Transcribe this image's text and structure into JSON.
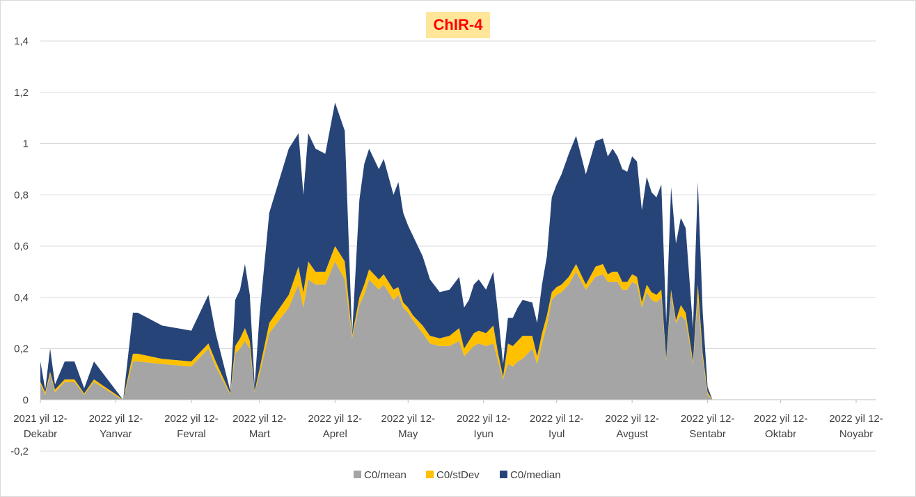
{
  "chart_data": {
    "type": "area",
    "title": "ChIR-4",
    "xlabel": "",
    "ylabel": "",
    "ylim": [
      -0.2,
      1.4
    ],
    "y_ticks": [
      "1,4",
      "1,2",
      "1",
      "0,8",
      "0,6",
      "0,4",
      "0,2",
      "0",
      "-0,2"
    ],
    "y_tick_values": [
      1.4,
      1.2,
      1.0,
      0.8,
      0.6,
      0.4,
      0.2,
      0,
      -0.2
    ],
    "grid": true,
    "legend_position": "bottom",
    "stacked": true,
    "x_axis_labels": [
      {
        "line1": "2021 yil 12-",
        "line2": "Dekabr"
      },
      {
        "line1": "2022 yil 12-",
        "line2": "Yanvar"
      },
      {
        "line1": "2022 yil 12-",
        "line2": "Fevral"
      },
      {
        "line1": "2022 yil 12-",
        "line2": "Mart"
      },
      {
        "line1": "2022 yil 12-",
        "line2": "Aprel"
      },
      {
        "line1": "2022 yil 12-",
        "line2": "May"
      },
      {
        "line1": "2022 yil 12-",
        "line2": "Iyun"
      },
      {
        "line1": "2022 yil 12-",
        "line2": "Iyul"
      },
      {
        "line1": "2022 yil 12-",
        "line2": "Avgust"
      },
      {
        "line1": "2022 yil 12-",
        "line2": "Sentabr"
      },
      {
        "line1": "2022 yil 12-",
        "line2": "Oktabr"
      },
      {
        "line1": "2022 yil 12-",
        "line2": "Noyabr"
      }
    ],
    "x": [
      "2021-12-12",
      "2021-12-14",
      "2021-12-16",
      "2021-12-18",
      "2021-12-22",
      "2021-12-26",
      "2021-12-30",
      "2022-01-03",
      "2022-01-13",
      "2022-01-15",
      "2022-01-19",
      "2022-01-21",
      "2022-01-31",
      "2022-02-12",
      "2022-02-19",
      "2022-02-22",
      "2022-02-28",
      "2022-03-02",
      "2022-03-04",
      "2022-03-06",
      "2022-03-08",
      "2022-03-10",
      "2022-03-12",
      "2022-03-16",
      "2022-03-24",
      "2022-03-28",
      "2022-03-30",
      "2022-04-01",
      "2022-04-04",
      "2022-04-08",
      "2022-04-12",
      "2022-04-16",
      "2022-04-19",
      "2022-04-22",
      "2022-04-24",
      "2022-04-26",
      "2022-04-30",
      "2022-05-02",
      "2022-05-06",
      "2022-05-08",
      "2022-05-10",
      "2022-05-12",
      "2022-05-14",
      "2022-05-18",
      "2022-05-21",
      "2022-05-25",
      "2022-05-29",
      "2022-06-02",
      "2022-06-04",
      "2022-06-06",
      "2022-06-08",
      "2022-06-10",
      "2022-06-13",
      "2022-06-16",
      "2022-06-18",
      "2022-06-20",
      "2022-06-22",
      "2022-06-24",
      "2022-06-26",
      "2022-06-28",
      "2022-07-02",
      "2022-07-04",
      "2022-07-06",
      "2022-07-08",
      "2022-07-10",
      "2022-07-12",
      "2022-07-14",
      "2022-07-17",
      "2022-07-20",
      "2022-07-24",
      "2022-07-28",
      "2022-07-31",
      "2022-08-02",
      "2022-08-04",
      "2022-08-06",
      "2022-08-08",
      "2022-08-10",
      "2022-08-12",
      "2022-08-14",
      "2022-08-16",
      "2022-08-18",
      "2022-08-20",
      "2022-08-22",
      "2022-08-24",
      "2022-08-26",
      "2022-08-28",
      "2022-08-30",
      "2022-09-01",
      "2022-09-03",
      "2022-09-06",
      "2022-09-08",
      "2022-09-10",
      "2022-09-12",
      "2022-09-14",
      "2022-09-16",
      "2022-09-18",
      "2022-09-22",
      "2022-09-24",
      "2022-09-26",
      "2022-09-28",
      "2022-09-30",
      "2022-10-02",
      "2022-10-04",
      "2022-10-08",
      "2022-10-10",
      "2022-10-14",
      "2022-10-16",
      "2022-11-10",
      "2022-11-18",
      "2022-11-20"
    ],
    "series": [
      {
        "name": "C0/mean",
        "color": "#a5a5a5",
        "values": [
          0.06,
          0.02,
          0.1,
          0.03,
          0.07,
          0.07,
          0.02,
          0.07,
          0.01,
          0.0,
          0.15,
          0.15,
          0.14,
          0.13,
          0.2,
          0.13,
          0.02,
          0.18,
          0.2,
          0.23,
          0.2,
          0.03,
          0.1,
          0.26,
          0.36,
          0.45,
          0.36,
          0.47,
          0.45,
          0.45,
          0.54,
          0.47,
          0.24,
          0.37,
          0.41,
          0.47,
          0.43,
          0.45,
          0.39,
          0.41,
          0.36,
          0.34,
          0.31,
          0.26,
          0.22,
          0.21,
          0.21,
          0.23,
          0.17,
          0.19,
          0.21,
          0.22,
          0.21,
          0.22,
          0.15,
          0.08,
          0.14,
          0.13,
          0.15,
          0.16,
          0.2,
          0.14,
          0.22,
          0.29,
          0.39,
          0.41,
          0.42,
          0.45,
          0.5,
          0.43,
          0.48,
          0.49,
          0.46,
          0.46,
          0.46,
          0.43,
          0.43,
          0.46,
          0.45,
          0.36,
          0.42,
          0.39,
          0.38,
          0.4,
          0.15,
          0.41,
          0.3,
          0.33,
          0.31,
          0.14,
          0.4,
          0.16,
          0.02,
          0.0,
          0.0,
          0.0,
          0.0,
          0.0,
          0.0,
          0.0,
          0.0,
          0.0,
          0.0,
          0.0,
          0.0,
          0.0,
          0.0,
          0.0,
          0.0,
          0.0
        ]
      },
      {
        "name": "C0/stDev",
        "color": "#ffc000",
        "values": [
          0.01,
          0.01,
          0.01,
          0.01,
          0.01,
          0.01,
          0.005,
          0.01,
          0.005,
          0.0,
          0.03,
          0.03,
          0.02,
          0.02,
          0.02,
          0.02,
          0.005,
          0.03,
          0.04,
          0.05,
          0.03,
          0.005,
          0.02,
          0.04,
          0.05,
          0.07,
          0.06,
          0.07,
          0.05,
          0.05,
          0.06,
          0.07,
          0.01,
          0.03,
          0.04,
          0.04,
          0.04,
          0.04,
          0.04,
          0.03,
          0.02,
          0.02,
          0.02,
          0.03,
          0.03,
          0.03,
          0.04,
          0.05,
          0.03,
          0.04,
          0.05,
          0.05,
          0.05,
          0.07,
          0.03,
          0.01,
          0.08,
          0.08,
          0.08,
          0.09,
          0.05,
          0.03,
          0.04,
          0.04,
          0.03,
          0.03,
          0.03,
          0.03,
          0.03,
          0.02,
          0.04,
          0.04,
          0.03,
          0.04,
          0.04,
          0.03,
          0.03,
          0.03,
          0.03,
          0.02,
          0.03,
          0.03,
          0.03,
          0.03,
          0.01,
          0.02,
          0.01,
          0.04,
          0.03,
          0.01,
          0.05,
          0.02,
          0.01,
          0.0,
          0.0,
          0.0,
          0.0,
          0.0,
          0.0,
          0.0,
          0.0,
          0.0,
          0.0,
          0.0,
          0.0,
          0.0,
          0.0,
          0.0,
          0.0,
          0.0
        ]
      },
      {
        "name": "C0/median",
        "color": "#264478",
        "values": [
          0.08,
          0.01,
          0.09,
          0.02,
          0.07,
          0.07,
          0.02,
          0.07,
          0.01,
          0.0,
          0.16,
          0.16,
          0.13,
          0.12,
          0.19,
          0.11,
          0.01,
          0.18,
          0.19,
          0.25,
          0.18,
          0.02,
          0.21,
          0.43,
          0.57,
          0.52,
          0.38,
          0.5,
          0.48,
          0.46,
          0.56,
          0.51,
          0.0,
          0.38,
          0.47,
          0.47,
          0.43,
          0.45,
          0.37,
          0.41,
          0.35,
          0.32,
          0.31,
          0.27,
          0.22,
          0.18,
          0.18,
          0.2,
          0.16,
          0.16,
          0.19,
          0.2,
          0.17,
          0.21,
          0.15,
          0.05,
          0.1,
          0.11,
          0.13,
          0.14,
          0.13,
          0.13,
          0.19,
          0.23,
          0.37,
          0.4,
          0.43,
          0.48,
          0.5,
          0.43,
          0.49,
          0.49,
          0.46,
          0.48,
          0.45,
          0.44,
          0.43,
          0.46,
          0.45,
          0.36,
          0.42,
          0.39,
          0.38,
          0.41,
          0.14,
          0.4,
          0.3,
          0.34,
          0.33,
          0.13,
          0.4,
          0.16,
          0.02,
          0.0,
          0.0,
          0.0,
          0.0,
          0.0,
          0.0,
          0.0,
          0.0,
          0.0,
          0.0,
          0.0,
          0.0,
          0.0,
          0.0,
          0.0,
          0.0,
          0.0
        ]
      }
    ]
  }
}
